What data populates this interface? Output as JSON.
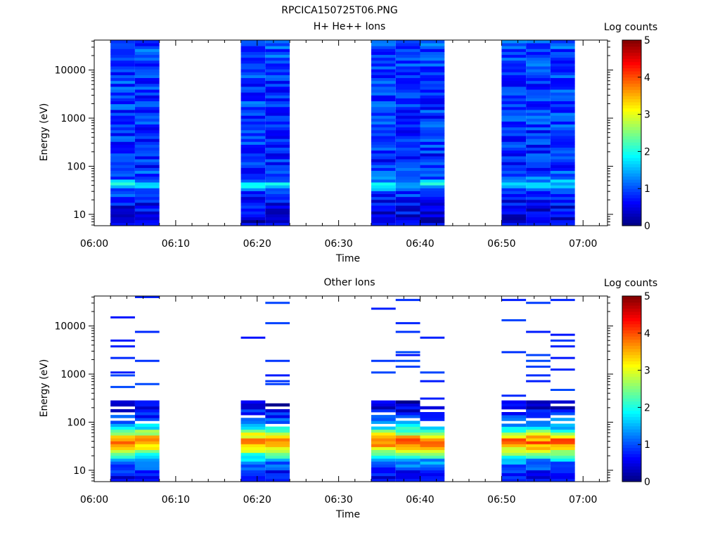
{
  "figure_title": "RPCICA150725T06.PNG",
  "colormap": [
    "#00007f",
    "#0000ff",
    "#007fff",
    "#00ffff",
    "#7fff7f",
    "#ffff00",
    "#ff7f00",
    "#ff0000",
    "#7f0000"
  ],
  "chart_data": [
    {
      "type": "heatmap",
      "title": "H+ He++ Ions",
      "xlabel": "Time",
      "ylabel": "Energy (eV)",
      "colorbar_label": "Log counts",
      "colorbar_range": [
        0,
        5
      ],
      "colorbar_ticks": [
        "0",
        "1",
        "2",
        "3",
        "4",
        "5"
      ],
      "x_ticks": [
        "06:00",
        "06:10",
        "06:20",
        "06:30",
        "06:40",
        "06:50",
        "07:00"
      ],
      "y_ticks": [
        "10",
        "100",
        "1000",
        "10000"
      ],
      "y_scale": "log",
      "x_range": [
        "06:00",
        "07:03"
      ],
      "y_range": [
        5.8,
        42000
      ],
      "time_columns": [
        {
          "start": "06:02",
          "end": "06:05"
        },
        {
          "start": "06:05",
          "end": "06:08"
        },
        {
          "start": "06:18",
          "end": "06:21"
        },
        {
          "start": "06:21",
          "end": "06:24"
        },
        {
          "start": "06:34",
          "end": "06:37"
        },
        {
          "start": "06:37",
          "end": "06:40"
        },
        {
          "start": "06:40",
          "end": "06:43"
        },
        {
          "start": "06:50",
          "end": "06:53"
        },
        {
          "start": "06:53",
          "end": "06:56"
        },
        {
          "start": "06:56",
          "end": "06:59"
        }
      ],
      "energy_profile": [
        {
          "energy": 6,
          "log_counts": 0.4
        },
        {
          "energy": 9,
          "log_counts": 0.5
        },
        {
          "energy": 14,
          "log_counts": 0.6
        },
        {
          "energy": 22,
          "log_counts": 0.7
        },
        {
          "energy": 30,
          "log_counts": 1.0
        },
        {
          "energy": 42,
          "log_counts": 1.8
        },
        {
          "energy": 55,
          "log_counts": 1.1
        },
        {
          "energy": 100,
          "log_counts": 0.8
        },
        {
          "energy": 1000,
          "log_counts": 0.9
        },
        {
          "energy": 10000,
          "log_counts": 0.9
        },
        {
          "energy": 40000,
          "log_counts": 1.0
        }
      ]
    },
    {
      "type": "heatmap",
      "title": "Other Ions",
      "xlabel": "Time",
      "ylabel": "Energy (eV)",
      "colorbar_label": "Log counts",
      "colorbar_range": [
        0,
        5
      ],
      "colorbar_ticks": [
        "0",
        "1",
        "2",
        "3",
        "4",
        "5"
      ],
      "x_ticks": [
        "06:00",
        "06:10",
        "06:20",
        "06:30",
        "06:40",
        "06:50",
        "07:00"
      ],
      "y_ticks": [
        "10",
        "100",
        "1000",
        "10000"
      ],
      "y_scale": "log",
      "x_range": [
        "06:00",
        "07:03"
      ],
      "y_range": [
        5.8,
        42000
      ],
      "time_columns": [
        {
          "start": "06:02",
          "end": "06:05"
        },
        {
          "start": "06:05",
          "end": "06:08"
        },
        {
          "start": "06:18",
          "end": "06:21"
        },
        {
          "start": "06:21",
          "end": "06:24"
        },
        {
          "start": "06:34",
          "end": "06:37"
        },
        {
          "start": "06:37",
          "end": "06:40"
        },
        {
          "start": "06:40",
          "end": "06:43"
        },
        {
          "start": "06:50",
          "end": "06:53"
        },
        {
          "start": "06:53",
          "end": "06:56"
        },
        {
          "start": "06:56",
          "end": "06:59"
        }
      ],
      "energy_profile": [
        {
          "energy": 6,
          "log_counts": 0.5
        },
        {
          "energy": 10,
          "log_counts": 0.8
        },
        {
          "energy": 16,
          "log_counts": 1.4
        },
        {
          "energy": 22,
          "log_counts": 2.3
        },
        {
          "energy": 30,
          "log_counts": 3.3
        },
        {
          "energy": 40,
          "log_counts": 4.0
        },
        {
          "energy": 55,
          "log_counts": 3.0
        },
        {
          "energy": 80,
          "log_counts": 1.6
        },
        {
          "energy": 150,
          "log_counts": 0.7
        },
        {
          "energy": 300,
          "log_counts": 0.3
        }
      ],
      "sparse_lines_above_eV": 300
    }
  ]
}
